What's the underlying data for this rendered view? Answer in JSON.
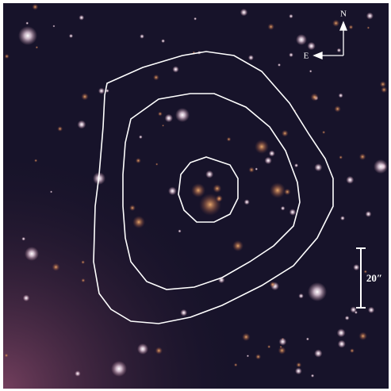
{
  "compass": {
    "north": "N",
    "east": "E"
  },
  "scale_bar": {
    "label": "20″"
  }
}
